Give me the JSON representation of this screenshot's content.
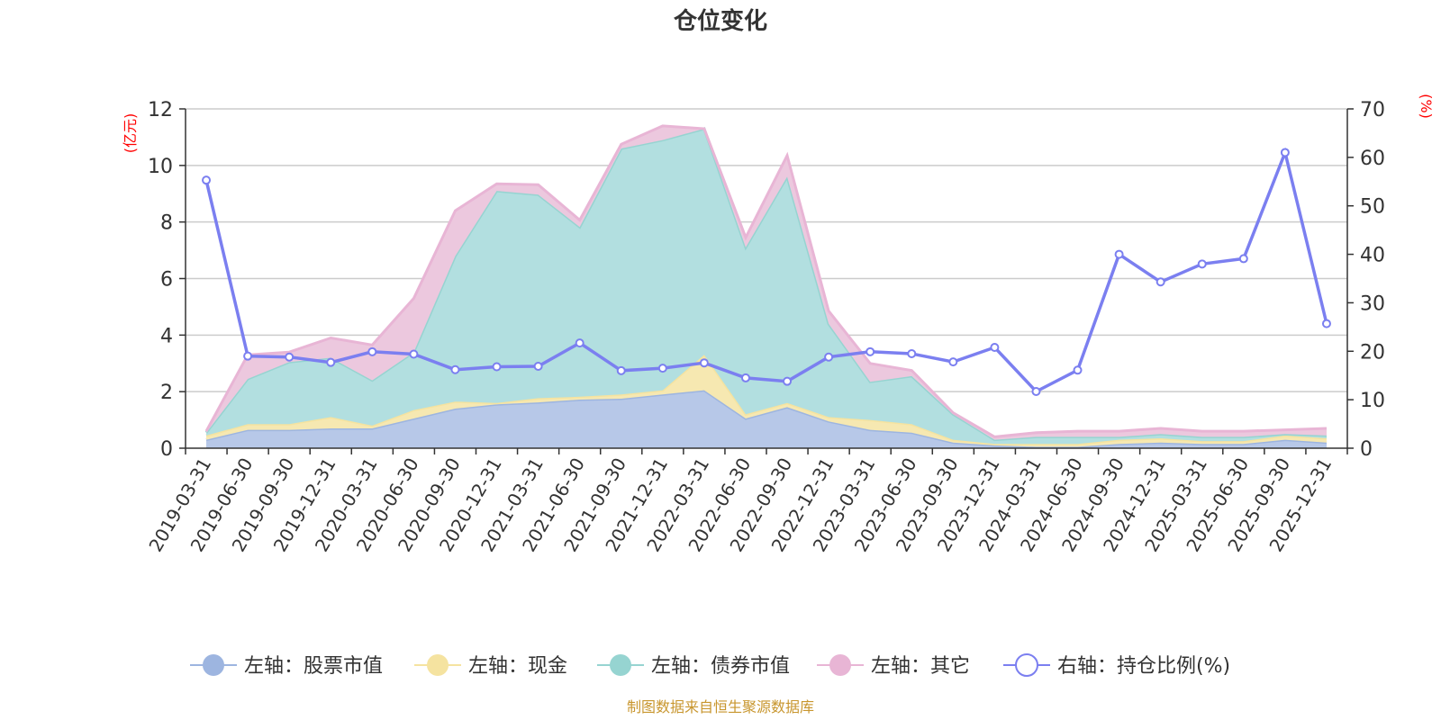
{
  "chart_data": {
    "type": "area",
    "title": "仓位变化",
    "left_axis": {
      "unit": "(亿元)",
      "min": 0,
      "max": 12,
      "ticks": [
        0,
        2,
        4,
        6,
        8,
        10,
        12
      ]
    },
    "right_axis": {
      "unit": "(%)",
      "min": 0,
      "max": 70,
      "ticks": [
        0,
        10,
        20,
        30,
        40,
        50,
        60,
        70
      ]
    },
    "categories": [
      "2019-03-31",
      "2019-06-30",
      "2019-09-30",
      "2019-12-31",
      "2020-03-31",
      "2020-06-30",
      "2020-09-30",
      "2020-12-31",
      "2021-03-31",
      "2021-06-30",
      "2021-09-30",
      "2021-12-31",
      "2022-03-31",
      "2022-06-30",
      "2022-09-30",
      "2022-12-31",
      "2023-03-31",
      "2023-06-30",
      "2023-09-30",
      "2023-12-31",
      "2024-03-31",
      "2024-06-30",
      "2024-09-30",
      "2024-12-31",
      "2025-03-31",
      "2025-06-30",
      "2025-09-30",
      "2025-12-31"
    ],
    "stacked_series": [
      {
        "name": "左轴：股票市值",
        "color": "#9db5e0",
        "fill": "#b7c8e8",
        "values": [
          0.3,
          0.65,
          0.65,
          0.7,
          0.7,
          1.05,
          1.4,
          1.55,
          1.62,
          1.72,
          1.75,
          1.9,
          2.05,
          1.05,
          1.45,
          0.95,
          0.65,
          0.55,
          0.2,
          0.1,
          0.05,
          0.05,
          0.15,
          0.2,
          0.15,
          0.15,
          0.3,
          0.2
        ]
      },
      {
        "name": "左轴：现金",
        "color": "#f5e3a0",
        "fill": "#f6e8b1",
        "values": [
          0.15,
          0.2,
          0.2,
          0.4,
          0.1,
          0.3,
          0.25,
          0.05,
          0.15,
          0.1,
          0.15,
          0.15,
          1.25,
          0.15,
          0.15,
          0.15,
          0.35,
          0.3,
          0.1,
          0.05,
          0.1,
          0.1,
          0.15,
          0.15,
          0.1,
          0.1,
          0.15,
          0.15
        ]
      },
      {
        "name": "左轴：债券市值",
        "color": "#96d4d1",
        "fill": "#b2dfe0",
        "values": [
          0.1,
          1.6,
          2.2,
          2.1,
          1.6,
          2.05,
          5.15,
          7.5,
          7.2,
          6.0,
          8.7,
          8.85,
          8.0,
          5.9,
          8.0,
          3.3,
          1.35,
          1.7,
          0.9,
          0.15,
          0.25,
          0.25,
          0.1,
          0.15,
          0.15,
          0.15,
          0.05,
          0.1
        ]
      },
      {
        "name": "左轴：其它",
        "color": "#e8b5d5",
        "fill": "#ecc8de",
        "values": [
          0.05,
          0.85,
          0.35,
          0.7,
          1.25,
          1.9,
          1.6,
          0.25,
          0.35,
          0.25,
          0.15,
          0.5,
          0.0,
          0.35,
          0.75,
          0.45,
          0.65,
          0.2,
          0.05,
          0.1,
          0.15,
          0.2,
          0.2,
          0.2,
          0.2,
          0.2,
          0.15,
          0.25
        ]
      }
    ],
    "line_series": {
      "name": "右轴：持仓比例(%)",
      "color": "#7b7ff0",
      "values": [
        55.3,
        19.0,
        18.8,
        17.7,
        19.9,
        19.4,
        16.2,
        16.8,
        16.9,
        21.7,
        16.0,
        16.5,
        17.6,
        14.5,
        13.8,
        18.8,
        19.9,
        19.5,
        17.8,
        20.8,
        11.7,
        16.1,
        40.0,
        34.3,
        38.0,
        39.1,
        61.0,
        25.7
      ]
    },
    "legend_position": "bottom",
    "grid": true
  },
  "source_note": "制图数据来自恒生聚源数据库"
}
